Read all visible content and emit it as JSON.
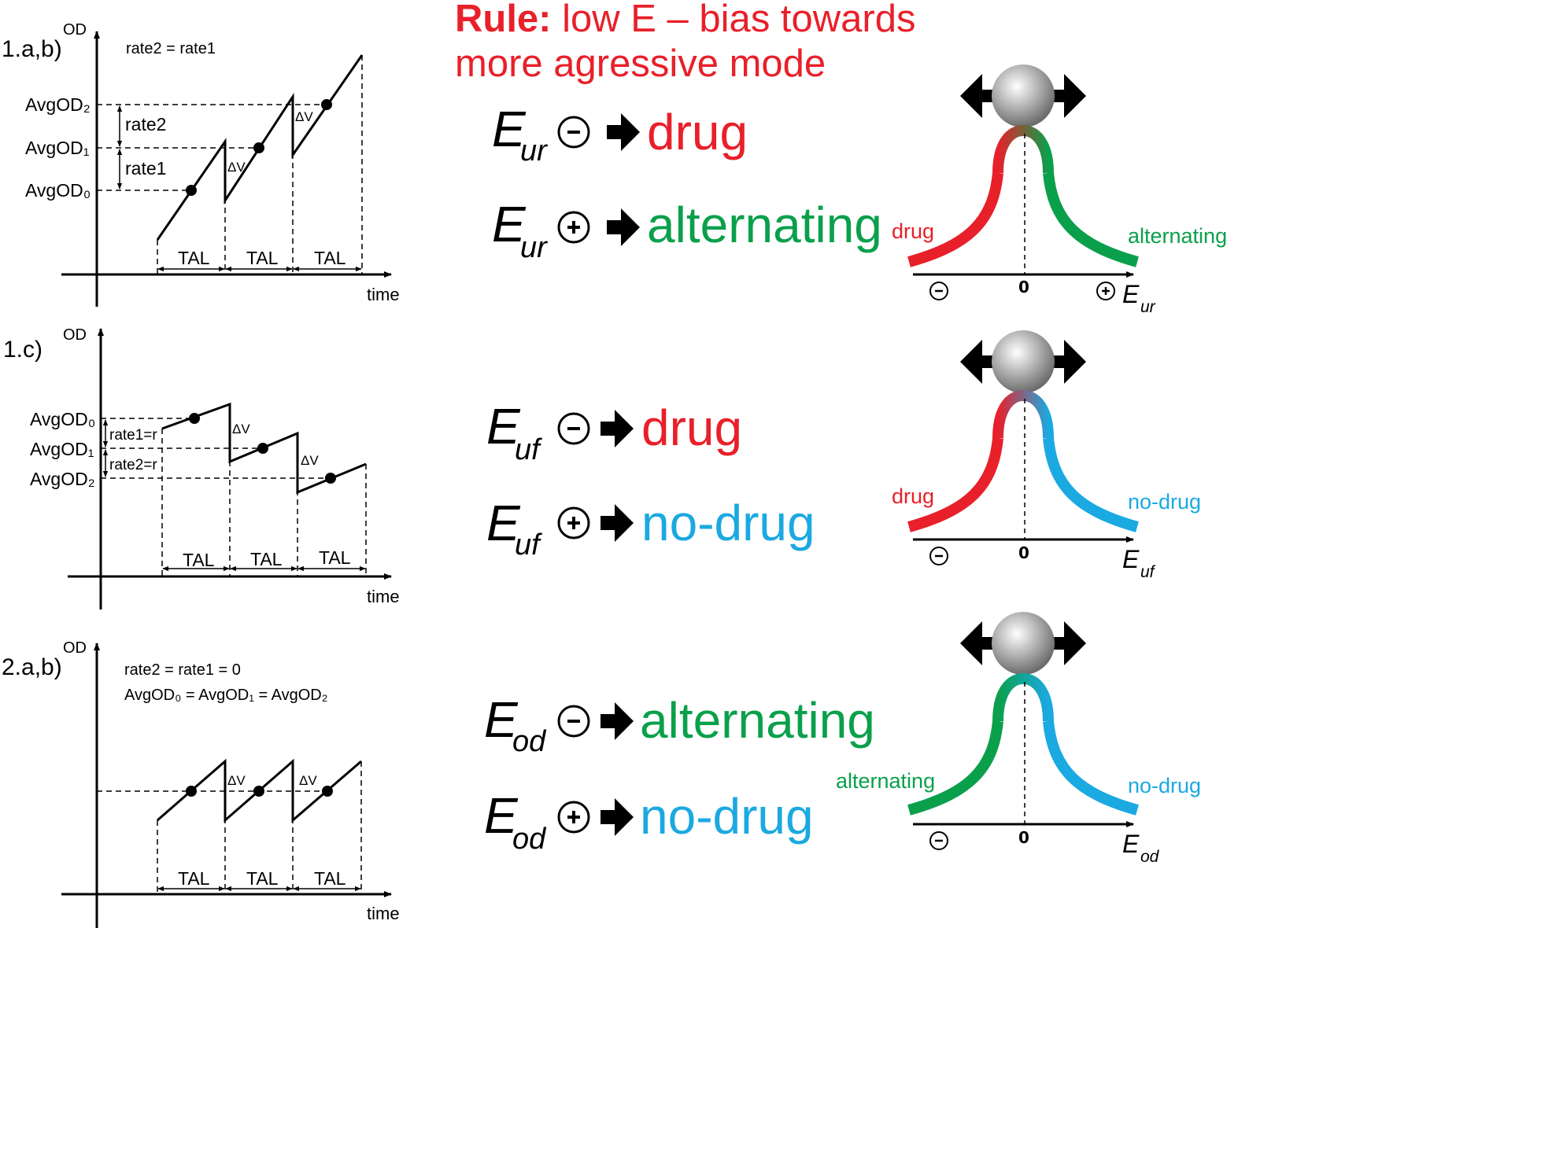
{
  "colors": {
    "red": "#e8202a",
    "green": "#0aa04b",
    "blue": "#1ba9e1",
    "black": "#000000",
    "ball_gray": "#9a9a9a"
  },
  "icons": [
    "minus-circle-icon",
    "plus-circle-icon",
    "right-arrow-icon",
    "double-arrow-icon",
    "ball-icon"
  ],
  "panels": {
    "p1": {
      "id": "1.a,b)",
      "y_axis": "OD",
      "x_axis": "time",
      "note1": "rate2 = rate1",
      "levels": [
        "AvgOD₂",
        "AvgOD₁",
        "AvgOD₀"
      ],
      "rates": [
        "rate2",
        "rate1"
      ],
      "dv": "ΔV",
      "tal": "TAL"
    },
    "p2": {
      "id": "1.c)",
      "y_axis": "OD",
      "x_axis": "time",
      "levels": [
        "AvgOD₀",
        "AvgOD₁",
        "AvgOD₂"
      ],
      "rates": [
        "rate1=r",
        "rate2=r"
      ],
      "dv": "ΔV",
      "tal": "TAL"
    },
    "p3": {
      "id": "2.a,b)",
      "y_axis": "OD",
      "x_axis": "time",
      "note1": "rate2 = rate1 = 0",
      "note2": "AvgOD₀ = AvgOD₁ = AvgOD₂",
      "dv": "ΔV",
      "tal": "TAL"
    }
  },
  "rule": {
    "prefix": "Rule:",
    "line1": "low E – bias towards",
    "line2": "more agressive mode"
  },
  "rows": {
    "ur": {
      "E": "E",
      "sub": "ur",
      "minus_outcome": "drug",
      "plus_outcome": "alternating",
      "left_label": "drug",
      "right_label": "alternating",
      "zero": "0"
    },
    "uf": {
      "E": "E",
      "sub": "uf",
      "minus_outcome": "drug",
      "plus_outcome": "no-drug",
      "left_label": "drug",
      "right_label": "no-drug",
      "zero": "0"
    },
    "od": {
      "E": "E",
      "sub": "od",
      "minus_outcome": "alternating",
      "plus_outcome": "no-drug",
      "left_label": "alternating",
      "right_label": "no-drug",
      "zero": "0"
    }
  }
}
